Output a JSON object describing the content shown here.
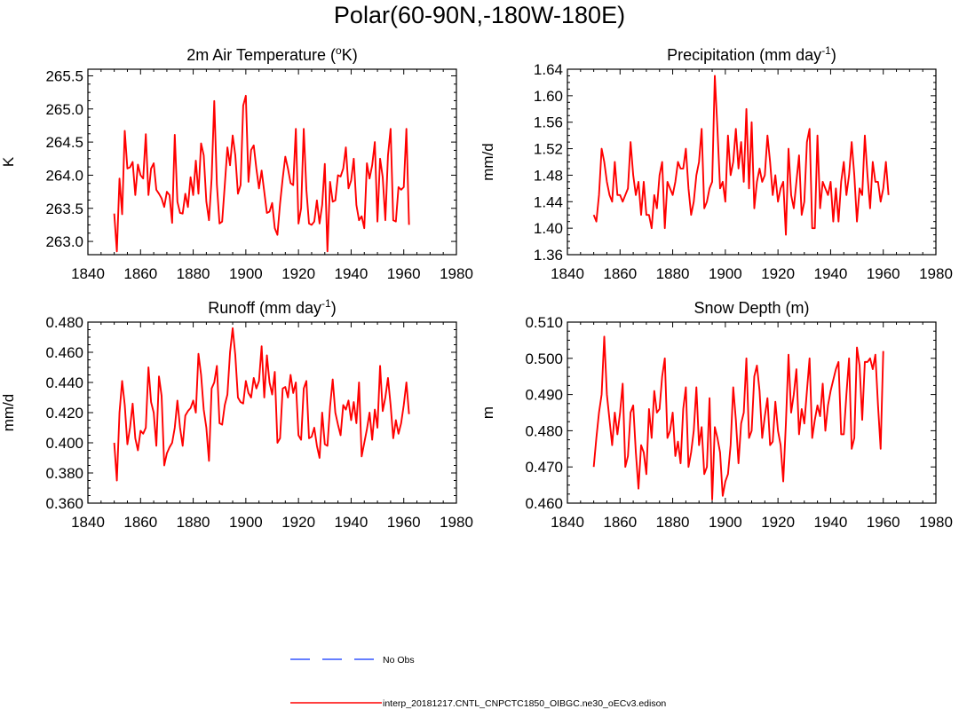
{
  "title": "Polar(60-90N,-180W-180E)",
  "colors": {
    "series": "#ff0000",
    "obs": "#3355ff",
    "axis": "#000000"
  },
  "legend": [
    {
      "label": "No Obs",
      "style": "dashed",
      "color": "#3355ff"
    },
    {
      "label": "interp_20181217.CNTL_CNPCTC1850_OIBGC.ne30_oECv3.edison",
      "style": "solid",
      "color": "#ff0000"
    }
  ],
  "chart_data": [
    {
      "type": "line",
      "title": "2m Air Temperature (",
      "title_sup": "o",
      "title_after": "K)",
      "ylabel": "K",
      "xlim": [
        1840,
        1980
      ],
      "xticks": [
        1840,
        1860,
        1880,
        1900,
        1920,
        1940,
        1960,
        1980
      ],
      "ylim": [
        262.8,
        265.6
      ],
      "yticks": [
        263.0,
        263.5,
        264.0,
        264.5,
        265.0,
        265.5
      ],
      "yticklabels": [
        "263.0",
        "263.5",
        "264.0",
        "264.5",
        "265.0",
        "265.5"
      ],
      "x_start": 1850,
      "series": [
        {
          "name": "interp_20181217.CNTL_CNPCTC1850_OIBGC.ne30_oECv3.edison",
          "values": [
            263.42,
            262.85,
            263.95,
            263.41,
            264.67,
            264.1,
            264.12,
            264.2,
            263.7,
            264.16,
            264.0,
            263.95,
            264.62,
            263.7,
            264.1,
            264.18,
            263.78,
            263.72,
            263.65,
            263.52,
            263.75,
            263.7,
            263.28,
            264.61,
            263.6,
            263.43,
            263.42,
            263.72,
            263.52,
            263.97,
            263.7,
            264.22,
            263.72,
            264.48,
            264.3,
            263.6,
            263.32,
            263.95,
            265.12,
            263.86,
            263.27,
            263.3,
            263.85,
            264.42,
            264.15,
            264.6,
            264.3,
            263.72,
            263.85,
            265.05,
            265.2,
            263.9,
            264.38,
            264.45,
            264.1,
            263.8,
            264.07,
            263.75,
            263.43,
            263.45,
            263.58,
            263.2,
            263.1,
            263.57,
            263.95,
            264.28,
            264.1,
            263.88,
            263.85,
            264.7,
            263.27,
            263.5,
            264.7,
            263.78,
            263.27,
            263.25,
            263.3,
            263.62,
            263.27,
            263.55,
            264.17,
            262.85,
            263.9,
            263.6,
            263.62,
            264.0,
            263.98,
            264.1,
            264.42,
            263.8,
            263.92,
            264.25,
            263.55,
            263.32,
            263.38,
            263.2,
            264.18,
            263.95,
            264.15,
            264.5,
            263.3,
            264.25,
            263.97,
            263.32,
            264.3,
            264.7,
            263.32,
            263.3,
            263.82,
            263.78,
            263.82,
            264.7,
            263.25
          ]
        }
      ]
    },
    {
      "type": "line",
      "title": "Precipitation (mm day",
      "title_sup": "-1",
      "title_after": ")",
      "ylabel": "mm/d",
      "xlim": [
        1840,
        1980
      ],
      "xticks": [
        1840,
        1860,
        1880,
        1900,
        1920,
        1940,
        1960,
        1980
      ],
      "ylim": [
        1.36,
        1.64
      ],
      "yticks": [
        1.36,
        1.4,
        1.44,
        1.48,
        1.52,
        1.56,
        1.6,
        1.64
      ],
      "yticklabels": [
        "1.36",
        "1.40",
        "1.44",
        "1.48",
        "1.52",
        "1.56",
        "1.60",
        "1.64"
      ],
      "x_start": 1850,
      "series": [
        {
          "name": "interp_20181217.CNTL_CNPCTC1850_OIBGC.ne30_oECv3.edison",
          "values": [
            1.42,
            1.41,
            1.45,
            1.52,
            1.5,
            1.47,
            1.45,
            1.44,
            1.5,
            1.45,
            1.45,
            1.44,
            1.45,
            1.46,
            1.53,
            1.48,
            1.45,
            1.47,
            1.42,
            1.47,
            1.42,
            1.42,
            1.4,
            1.45,
            1.43,
            1.48,
            1.5,
            1.4,
            1.47,
            1.46,
            1.45,
            1.47,
            1.5,
            1.49,
            1.49,
            1.52,
            1.46,
            1.42,
            1.44,
            1.48,
            1.5,
            1.55,
            1.43,
            1.44,
            1.46,
            1.47,
            1.63,
            1.55,
            1.46,
            1.47,
            1.44,
            1.54,
            1.48,
            1.5,
            1.55,
            1.49,
            1.53,
            1.47,
            1.58,
            1.46,
            1.56,
            1.43,
            1.47,
            1.49,
            1.47,
            1.48,
            1.54,
            1.5,
            1.45,
            1.48,
            1.44,
            1.46,
            1.47,
            1.39,
            1.52,
            1.45,
            1.43,
            1.47,
            1.51,
            1.42,
            1.44,
            1.53,
            1.55,
            1.4,
            1.4,
            1.54,
            1.43,
            1.47,
            1.46,
            1.45,
            1.47,
            1.41,
            1.46,
            1.41,
            1.47,
            1.5,
            1.45,
            1.48,
            1.53,
            1.48,
            1.41,
            1.46,
            1.45,
            1.54,
            1.48,
            1.43,
            1.5,
            1.47,
            1.47,
            1.44,
            1.46,
            1.5,
            1.45
          ]
        }
      ]
    },
    {
      "type": "line",
      "title": "Runoff (mm day",
      "title_sup": "-1",
      "title_after": ")",
      "ylabel": "mm/d",
      "xlim": [
        1840,
        1980
      ],
      "xticks": [
        1840,
        1860,
        1880,
        1900,
        1920,
        1940,
        1960,
        1980
      ],
      "ylim": [
        0.36,
        0.48
      ],
      "yticks": [
        0.36,
        0.38,
        0.4,
        0.42,
        0.44,
        0.46,
        0.48
      ],
      "yticklabels": [
        "0.360",
        "0.380",
        "0.400",
        "0.420",
        "0.440",
        "0.460",
        "0.480"
      ],
      "x_start": 1850,
      "series": [
        {
          "name": "interp_20181217.CNTL_CNPCTC1850_OIBGC.ne30_oECv3.edison",
          "values": [
            0.4,
            0.375,
            0.42,
            0.441,
            0.425,
            0.399,
            0.41,
            0.426,
            0.403,
            0.395,
            0.408,
            0.406,
            0.41,
            0.45,
            0.427,
            0.42,
            0.398,
            0.444,
            0.431,
            0.385,
            0.393,
            0.397,
            0.4,
            0.41,
            0.428,
            0.41,
            0.398,
            0.418,
            0.421,
            0.423,
            0.428,
            0.42,
            0.459,
            0.445,
            0.422,
            0.41,
            0.388,
            0.436,
            0.44,
            0.451,
            0.413,
            0.412,
            0.425,
            0.432,
            0.46,
            0.476,
            0.458,
            0.43,
            0.427,
            0.426,
            0.441,
            0.433,
            0.43,
            0.443,
            0.436,
            0.441,
            0.464,
            0.43,
            0.458,
            0.44,
            0.432,
            0.447,
            0.4,
            0.403,
            0.436,
            0.437,
            0.43,
            0.445,
            0.433,
            0.44,
            0.405,
            0.402,
            0.436,
            0.441,
            0.403,
            0.404,
            0.41,
            0.398,
            0.39,
            0.42,
            0.399,
            0.398,
            0.424,
            0.442,
            0.42,
            0.412,
            0.405,
            0.425,
            0.422,
            0.428,
            0.415,
            0.427,
            0.413,
            0.44,
            0.391,
            0.4,
            0.409,
            0.42,
            0.402,
            0.422,
            0.41,
            0.451,
            0.421,
            0.43,
            0.443,
            0.425,
            0.403,
            0.415,
            0.406,
            0.413,
            0.425,
            0.44,
            0.419
          ]
        }
      ]
    },
    {
      "type": "line",
      "title": "Snow Depth (m)",
      "title_sup": "",
      "title_after": "",
      "ylabel": "m",
      "xlim": [
        1840,
        1980
      ],
      "xticks": [
        1840,
        1860,
        1880,
        1900,
        1920,
        1940,
        1960,
        1980
      ],
      "ylim": [
        0.46,
        0.51
      ],
      "yticks": [
        0.46,
        0.47,
        0.48,
        0.49,
        0.5,
        0.51
      ],
      "yticklabels": [
        "0.460",
        "0.470",
        "0.480",
        "0.490",
        "0.500",
        "0.510"
      ],
      "x_start": 1850,
      "series": [
        {
          "name": "interp_20181217.CNTL_CNPCTC1850_OIBGC.ne30_oECv3.edison",
          "values": [
            0.47,
            0.478,
            0.485,
            0.49,
            0.506,
            0.49,
            0.483,
            0.476,
            0.485,
            0.479,
            0.485,
            0.493,
            0.47,
            0.473,
            0.485,
            0.487,
            0.474,
            0.464,
            0.476,
            0.474,
            0.468,
            0.486,
            0.478,
            0.491,
            0.485,
            0.486,
            0.495,
            0.5,
            0.478,
            0.48,
            0.485,
            0.473,
            0.477,
            0.471,
            0.486,
            0.492,
            0.47,
            0.474,
            0.48,
            0.492,
            0.476,
            0.481,
            0.468,
            0.47,
            0.489,
            0.461,
            0.481,
            0.478,
            0.474,
            0.462,
            0.466,
            0.468,
            0.476,
            0.492,
            0.483,
            0.471,
            0.482,
            0.485,
            0.5,
            0.478,
            0.48,
            0.495,
            0.498,
            0.491,
            0.478,
            0.484,
            0.489,
            0.476,
            0.477,
            0.488,
            0.48,
            0.476,
            0.466,
            0.482,
            0.501,
            0.485,
            0.49,
            0.497,
            0.479,
            0.486,
            0.482,
            0.491,
            0.5,
            0.478,
            0.483,
            0.487,
            0.484,
            0.493,
            0.48,
            0.487,
            0.491,
            0.494,
            0.497,
            0.499,
            0.479,
            0.479,
            0.49,
            0.5,
            0.475,
            0.478,
            0.503,
            0.498,
            0.483,
            0.499,
            0.499,
            0.5,
            0.497,
            0.501,
            0.487,
            0.475,
            0.502
          ]
        }
      ]
    }
  ]
}
